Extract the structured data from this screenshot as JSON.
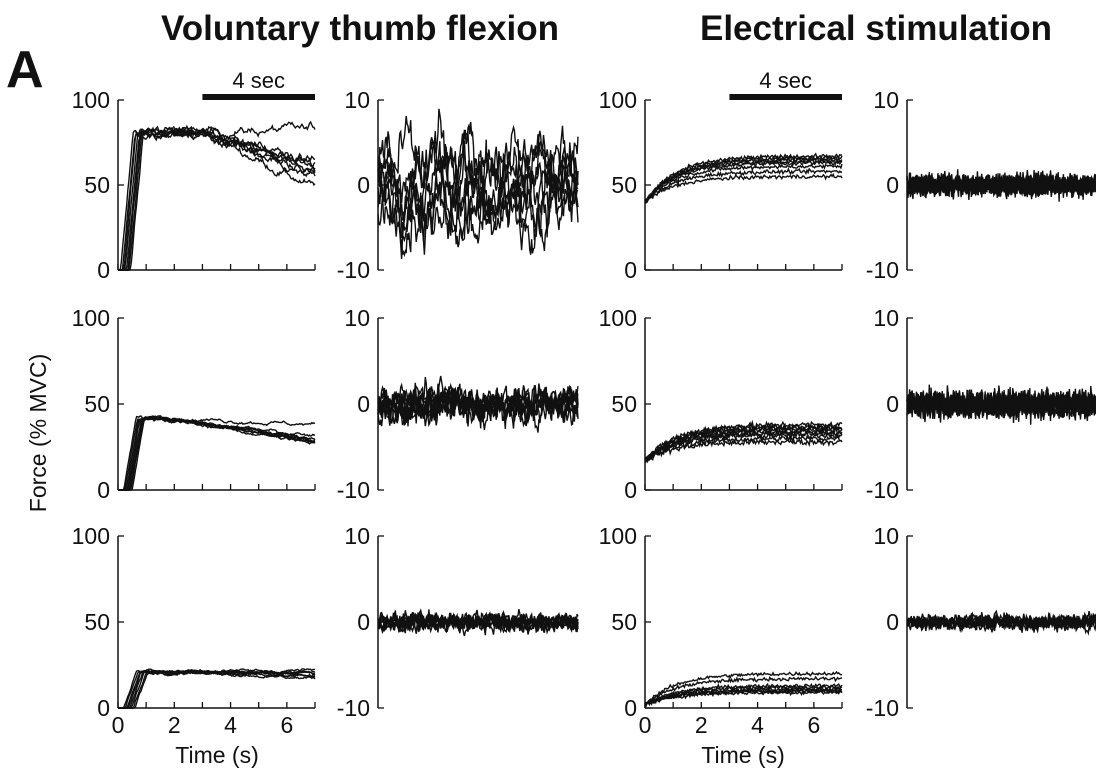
{
  "panel_label": "A",
  "column_titles": [
    "Voluntary thumb flexion",
    "Electrical stimulation"
  ],
  "y_label": "Force (% MVC)",
  "x_label": "Time (s)",
  "scale_bar_label": "4 sec",
  "colors": {
    "trace": "#111111",
    "axis": "#111111",
    "background": "#ffffff"
  },
  "chart_data": [
    {
      "type": "line",
      "condition": "voluntary",
      "kind": "force",
      "level": "high",
      "xlim": [
        0,
        7
      ],
      "ylim": [
        0,
        100
      ],
      "yticks": [
        0,
        50,
        100
      ],
      "xticks": [
        0,
        2,
        4,
        6
      ],
      "show_xticklabels": false,
      "scale_bar": [
        3,
        7
      ],
      "n_traces": 8,
      "ramp_time": [
        0.1,
        0.45
      ],
      "plateau": 81,
      "end_values": [
        83,
        48,
        55,
        58,
        62,
        64,
        56,
        60
      ],
      "decline_start": 3,
      "noise": 2.5
    },
    {
      "type": "line",
      "condition": "voluntary",
      "kind": "fluctuation",
      "level": "high",
      "xlim": [
        0,
        7
      ],
      "ylim": [
        -10,
        10
      ],
      "yticks": [
        -10,
        0,
        10
      ],
      "n_traces": 8,
      "amplitude": 4.5,
      "smooth": 0.9
    },
    {
      "type": "line",
      "condition": "stimulation",
      "kind": "force",
      "level": "high",
      "xlim": [
        0,
        7
      ],
      "ylim": [
        0,
        100
      ],
      "yticks": [
        0,
        50,
        100
      ],
      "xticks": [
        0,
        2,
        4,
        6
      ],
      "show_xticklabels": false,
      "scale_bar": [
        3,
        7
      ],
      "n_traces": 8,
      "start_value": 40,
      "end_values": [
        55,
        58,
        61,
        63,
        64,
        65,
        66,
        67
      ],
      "noise": 0.8
    },
    {
      "type": "line",
      "condition": "stimulation",
      "kind": "fluctuation",
      "level": "high",
      "xlim": [
        0,
        7
      ],
      "ylim": [
        -10,
        10
      ],
      "yticks": [
        -10,
        0,
        10
      ],
      "n_traces": 10,
      "amplitude": 0.9,
      "smooth": 0.0
    },
    {
      "type": "line",
      "condition": "voluntary",
      "kind": "force",
      "level": "medium",
      "xlim": [
        0,
        7
      ],
      "ylim": [
        0,
        100
      ],
      "yticks": [
        0,
        50,
        100
      ],
      "xticks": [
        0,
        2,
        4,
        6
      ],
      "show_xticklabels": false,
      "n_traces": 8,
      "ramp_time": [
        0.2,
        0.5
      ],
      "plateau": 42,
      "end_values": [
        38,
        28,
        29,
        30,
        27,
        31,
        28,
        29
      ],
      "decline_start": 1.5,
      "noise": 1.0
    },
    {
      "type": "line",
      "condition": "voluntary",
      "kind": "fluctuation",
      "level": "medium",
      "xlim": [
        0,
        7
      ],
      "ylim": [
        -10,
        10
      ],
      "yticks": [
        -10,
        0,
        10
      ],
      "n_traces": 8,
      "amplitude": 1.8,
      "smooth": 0.6
    },
    {
      "type": "line",
      "condition": "stimulation",
      "kind": "force",
      "level": "medium",
      "xlim": [
        0,
        7
      ],
      "ylim": [
        0,
        100
      ],
      "yticks": [
        0,
        50,
        100
      ],
      "xticks": [
        0,
        2,
        4,
        6
      ],
      "show_xticklabels": false,
      "n_traces": 9,
      "start_value": 17,
      "end_values": [
        28,
        30,
        32,
        33,
        34,
        35,
        36,
        37,
        38
      ],
      "noise": 1.2
    },
    {
      "type": "line",
      "condition": "stimulation",
      "kind": "fluctuation",
      "level": "medium",
      "xlim": [
        0,
        7
      ],
      "ylim": [
        -10,
        10
      ],
      "yticks": [
        -10,
        0,
        10
      ],
      "n_traces": 10,
      "amplitude": 1.1,
      "smooth": 0.0
    },
    {
      "type": "line",
      "condition": "voluntary",
      "kind": "force",
      "level": "low",
      "xlim": [
        0,
        7
      ],
      "ylim": [
        0,
        100
      ],
      "yticks": [
        0,
        50,
        100
      ],
      "xticks": [
        0,
        2,
        4,
        6
      ],
      "show_xticklabels": true,
      "n_traces": 8,
      "ramp_time": [
        0.2,
        0.6
      ],
      "plateau": 21,
      "end_values": [
        19,
        18,
        20,
        21,
        22,
        17,
        20,
        19
      ],
      "decline_start": 3,
      "noise": 0.9
    },
    {
      "type": "line",
      "condition": "voluntary",
      "kind": "fluctuation",
      "level": "low",
      "xlim": [
        0,
        7
      ],
      "ylim": [
        -10,
        10
      ],
      "yticks": [
        -10,
        0,
        10
      ],
      "n_traces": 8,
      "amplitude": 0.9,
      "smooth": 0.5
    },
    {
      "type": "line",
      "condition": "stimulation",
      "kind": "force",
      "level": "low",
      "xlim": [
        0,
        7
      ],
      "ylim": [
        0,
        100
      ],
      "yticks": [
        0,
        50,
        100
      ],
      "xticks": [
        0,
        2,
        4,
        6
      ],
      "show_xticklabels": true,
      "n_traces": 8,
      "start_value": 2,
      "end_values": [
        9,
        10,
        11,
        12,
        13,
        17,
        20,
        10
      ],
      "noise": 0.7
    },
    {
      "type": "line",
      "condition": "stimulation",
      "kind": "fluctuation",
      "level": "low",
      "xlim": [
        0,
        7
      ],
      "ylim": [
        -10,
        10
      ],
      "yticks": [
        -10,
        0,
        10
      ],
      "n_traces": 8,
      "amplitude": 0.7,
      "smooth": 0.4
    }
  ]
}
